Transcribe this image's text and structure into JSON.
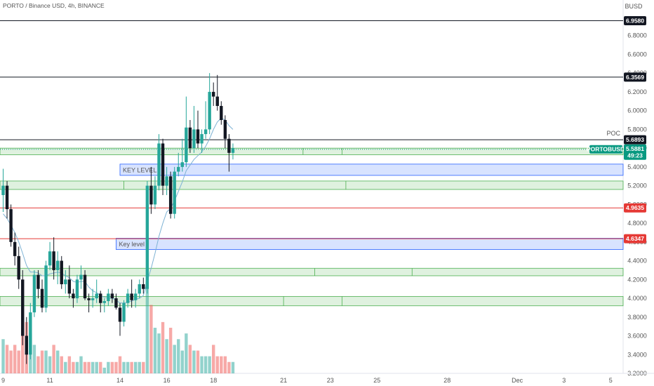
{
  "header": {
    "title": "PORTO / Binance USD, 4h, BINANCE"
  },
  "chart_data": {
    "type": "candlestick",
    "symbol": "PORTOBUSD",
    "currency": "BUSD",
    "timeframe": "4h",
    "ylim": [
      3.2,
      7.0
    ],
    "xlim": [
      0,
      160
    ],
    "y_ticks": [
      "6.8000",
      "6.6000",
      "6.4000",
      "6.2000",
      "6.0000",
      "5.8000",
      "5.6000",
      "5.4000",
      "5.2000",
      "5.0000",
      "4.8000",
      "4.6000",
      "4.4000",
      "4.2000",
      "4.0000",
      "3.8000",
      "3.6000",
      "3.4000",
      "3.2000"
    ],
    "x_ticks": [
      {
        "label": "9",
        "t": 0
      },
      {
        "label": "11",
        "t": 12
      },
      {
        "label": "14",
        "t": 30
      },
      {
        "label": "16",
        "t": 42
      },
      {
        "label": "18",
        "t": 54
      },
      {
        "label": "21",
        "t": 72
      },
      {
        "label": "23",
        "t": 84
      },
      {
        "label": "25",
        "t": 96
      },
      {
        "label": "28",
        "t": 114
      },
      {
        "label": "Dec",
        "t": 132
      },
      {
        "label": "3",
        "t": 144
      },
      {
        "label": "5",
        "t": 156
      }
    ],
    "horizontal_lines": [
      {
        "price": 6.958,
        "color": "#131722",
        "label": "6.9580"
      },
      {
        "price": 6.3569,
        "color": "#131722",
        "label": "6.3569"
      },
      {
        "price": 5.6893,
        "color": "#131722",
        "label": "5.6893",
        "note": "POC"
      },
      {
        "price": 4.9635,
        "color": "#e53935",
        "label": "4.9635"
      },
      {
        "price": 4.6347,
        "color": "#e53935",
        "label": "4.6347"
      }
    ],
    "current_price": {
      "price": 5.5881,
      "label": "5.5881",
      "symbol": "PORTOBUSD",
      "countdown": "49:23"
    },
    "zones": [
      {
        "top": 5.6,
        "bottom": 5.53,
        "kind": "support",
        "dividers": [
          77,
          87
        ]
      },
      {
        "top": 5.43,
        "bottom": 5.31,
        "kind": "key",
        "label": "KEY LEVEL",
        "x_start": 30
      },
      {
        "top": 5.25,
        "bottom": 5.16,
        "kind": "support",
        "dividers": [
          31,
          88
        ]
      },
      {
        "top": 4.64,
        "bottom": 4.52,
        "kind": "key",
        "label": "Key level",
        "x_start": 29
      },
      {
        "top": 4.32,
        "bottom": 4.24,
        "kind": "support",
        "dividers": [
          80,
          105
        ]
      },
      {
        "top": 4.02,
        "bottom": 3.92,
        "kind": "support",
        "dividers": [
          72,
          87
        ]
      }
    ],
    "candles": [
      [
        5.1,
        5.38,
        4.92,
        5.2
      ],
      [
        5.2,
        5.25,
        4.85,
        4.95
      ],
      [
        4.95,
        5.0,
        4.55,
        4.6
      ],
      [
        4.6,
        4.7,
        4.35,
        4.45
      ],
      [
        4.45,
        4.55,
        4.1,
        4.2
      ],
      [
        4.2,
        4.3,
        3.5,
        3.6
      ],
      [
        3.6,
        3.8,
        3.3,
        3.4
      ],
      [
        3.4,
        3.95,
        3.35,
        3.85
      ],
      [
        3.85,
        4.3,
        3.8,
        4.25
      ],
      [
        4.25,
        4.3,
        4.0,
        4.1
      ],
      [
        4.1,
        4.2,
        3.85,
        3.9
      ],
      [
        3.9,
        4.4,
        3.85,
        4.35
      ],
      [
        4.35,
        4.6,
        4.3,
        4.5
      ],
      [
        4.5,
        4.65,
        4.2,
        4.3
      ],
      [
        4.3,
        4.5,
        4.15,
        4.4
      ],
      [
        4.4,
        4.45,
        4.1,
        4.15
      ],
      [
        4.15,
        4.3,
        4.05,
        4.2
      ],
      [
        4.2,
        4.35,
        4.0,
        4.05
      ],
      [
        4.05,
        4.1,
        3.9,
        4.0
      ],
      [
        4.0,
        4.25,
        3.95,
        4.2
      ],
      [
        4.2,
        4.35,
        4.1,
        4.25
      ],
      [
        4.25,
        4.3,
        3.98,
        4.0
      ],
      [
        4.0,
        4.05,
        3.85,
        3.98
      ],
      [
        3.98,
        4.1,
        3.9,
        4.0
      ],
      [
        4.0,
        4.2,
        3.95,
        4.05
      ],
      [
        4.05,
        4.08,
        3.85,
        3.95
      ],
      [
        3.95,
        4.0,
        3.85,
        3.97
      ],
      [
        3.97,
        4.1,
        3.92,
        4.05
      ],
      [
        4.05,
        4.1,
        3.95,
        4.0
      ],
      [
        4.0,
        4.05,
        3.88,
        3.9
      ],
      [
        3.9,
        3.95,
        3.6,
        3.75
      ],
      [
        3.75,
        3.98,
        3.7,
        3.95
      ],
      [
        3.95,
        4.1,
        3.9,
        4.05
      ],
      [
        4.05,
        4.2,
        3.9,
        3.98
      ],
      [
        3.98,
        4.1,
        3.9,
        4.05
      ],
      [
        4.05,
        4.2,
        4.0,
        4.15
      ],
      [
        4.15,
        4.22,
        4.05,
        4.1
      ],
      [
        4.1,
        5.25,
        4.05,
        5.2
      ],
      [
        5.2,
        5.4,
        4.9,
        5.0
      ],
      [
        5.0,
        5.3,
        4.95,
        5.2
      ],
      [
        5.2,
        5.75,
        5.15,
        5.65
      ],
      [
        5.65,
        5.7,
        5.1,
        5.2
      ],
      [
        5.2,
        5.4,
        5.1,
        5.3
      ],
      [
        5.3,
        5.35,
        4.85,
        4.9
      ],
      [
        4.9,
        5.4,
        4.85,
        5.35
      ],
      [
        5.35,
        5.55,
        5.3,
        5.4
      ],
      [
        5.4,
        5.7,
        5.35,
        5.45
      ],
      [
        5.45,
        6.15,
        5.4,
        5.82
      ],
      [
        5.82,
        5.9,
        5.55,
        5.6
      ],
      [
        5.6,
        6.05,
        5.55,
        5.8
      ],
      [
        5.8,
        6.0,
        5.6,
        5.65
      ],
      [
        5.65,
        5.8,
        5.55,
        5.75
      ],
      [
        5.75,
        6.1,
        5.7,
        5.8
      ],
      [
        5.8,
        6.4,
        5.75,
        6.2
      ],
      [
        6.2,
        6.3,
        6.05,
        6.15
      ],
      [
        6.15,
        6.38,
        6.0,
        6.05
      ],
      [
        6.05,
        6.1,
        5.85,
        5.9
      ],
      [
        5.9,
        5.95,
        5.6,
        5.7
      ],
      [
        5.7,
        5.75,
        5.35,
        5.55
      ],
      [
        5.55,
        5.65,
        5.48,
        5.6
      ]
    ],
    "sma": [
      4.9,
      4.85,
      4.78,
      4.7,
      4.6,
      4.48,
      4.35,
      4.28,
      4.28,
      4.27,
      4.24,
      4.24,
      4.26,
      4.27,
      4.28,
      4.27,
      4.24,
      4.22,
      4.18,
      4.17,
      4.18,
      4.18,
      4.12,
      4.08,
      4.06,
      4.03,
      4.01,
      4.0,
      4.0,
      3.98,
      3.95,
      3.95,
      3.96,
      3.97,
      3.99,
      4.0,
      4.03,
      4.18,
      4.32,
      4.48,
      4.66,
      4.8,
      4.92,
      4.96,
      5.04,
      5.14,
      5.24,
      5.36,
      5.42,
      5.48,
      5.52,
      5.56,
      5.62,
      5.7,
      5.8,
      5.88,
      5.92,
      5.9,
      5.84,
      5.8
    ],
    "volume": [
      6,
      5,
      4,
      5,
      4,
      8,
      9,
      7,
      5,
      3,
      4,
      4,
      3,
      5,
      4,
      3,
      2,
      3,
      2,
      2,
      3,
      2,
      2,
      2,
      2,
      2,
      1,
      2,
      2,
      2,
      3,
      2,
      2,
      2,
      2,
      2,
      2,
      16,
      12,
      8,
      7,
      9,
      6,
      8,
      5,
      6,
      4,
      7,
      5,
      4,
      4,
      3,
      3,
      3,
      5,
      3,
      3,
      3,
      2,
      2
    ]
  }
}
